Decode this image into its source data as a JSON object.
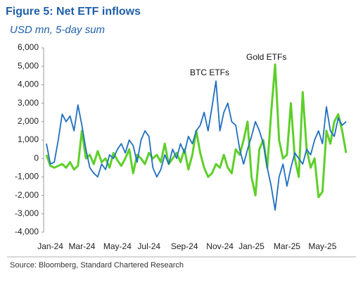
{
  "chart_data": {
    "type": "line",
    "title": "Figure 5: Net ETF inflows",
    "subtitle": "USD mn, 5-day sum",
    "source": "Source: Bloomberg, Standard Chartered Research",
    "annotations": [
      {
        "text": "BTC ETFs"
      },
      {
        "text": "Gold ETFs"
      }
    ],
    "categories": [
      null,
      "Jan-24",
      null,
      null,
      null,
      null,
      null,
      null,
      null,
      "Mar-24",
      null,
      null,
      null,
      null,
      null,
      null,
      null,
      null,
      "May-24",
      null,
      null,
      null,
      null,
      null,
      null,
      null,
      "Jul-24",
      null,
      null,
      null,
      null,
      null,
      null,
      null,
      null,
      "Sep-24",
      null,
      null,
      null,
      null,
      null,
      null,
      null,
      null,
      "Nov-24",
      null,
      null,
      null,
      null,
      null,
      null,
      null,
      "Jan-25",
      null,
      null,
      null,
      null,
      null,
      null,
      null,
      null,
      "Mar-25",
      null,
      null,
      null,
      null,
      null,
      null,
      null,
      null,
      "May-25",
      null,
      null,
      null,
      null,
      null,
      null
    ],
    "series": [
      {
        "name": "BTC ETFs",
        "color": "#1f6fbf",
        "values": [
          800,
          -300,
          -200,
          1000,
          2400,
          2000,
          2300,
          1500,
          2900,
          1800,
          500,
          -500,
          -800,
          -1000,
          -300,
          -600,
          200,
          0,
          500,
          800,
          300,
          1000,
          700,
          -200,
          1000,
          1500,
          1200,
          -500,
          -1000,
          -600,
          200,
          -300,
          500,
          0,
          800,
          300,
          1200,
          800,
          1500,
          1800,
          2500,
          1500,
          2800,
          4200,
          1500,
          2500,
          3000,
          2000,
          1800,
          500,
          -300,
          500,
          1200,
          2000,
          1500,
          800,
          -500,
          -1500,
          -2800,
          -1000,
          -300,
          -1500,
          -500,
          300,
          0,
          -300,
          500,
          200,
          1000,
          1500,
          800,
          2800,
          1500,
          1200,
          2200,
          1800,
          2000
        ]
      },
      {
        "name": "Gold ETFs",
        "color": "#5ecf2a",
        "values": [
          200,
          -400,
          -500,
          -400,
          -300,
          -500,
          -200,
          -600,
          -400,
          1500,
          0,
          200,
          -300,
          400,
          -200,
          0,
          -500,
          300,
          -100,
          -400,
          0,
          500,
          -800,
          200,
          0,
          -300,
          300,
          0,
          200,
          -200,
          800,
          -300,
          0,
          300,
          -200,
          500,
          -600,
          200,
          1500,
          300,
          -500,
          -1000,
          -800,
          -300,
          -500,
          200,
          -500,
          -800,
          500,
          200,
          1000,
          2000,
          -1000,
          -2000,
          500,
          1000,
          -500,
          2500,
          5100,
          1000,
          0,
          200,
          3000,
          0,
          -1000,
          3600,
          500,
          -500,
          0,
          -2100,
          -1800,
          1500,
          800,
          2000,
          2400,
          1500,
          300
        ]
      }
    ],
    "ylim": [
      -4000,
      6000
    ],
    "yticks": [
      {
        "value": -4000,
        "label": "-4,000"
      },
      {
        "value": -3000,
        "label": "-3,000"
      },
      {
        "value": -2000,
        "label": "-2,000"
      },
      {
        "value": -1000,
        "label": "-1,000"
      },
      0,
      {
        "value": 1000,
        "label": "1,000"
      },
      {
        "value": 2000,
        "label": "2,000"
      },
      {
        "value": 3000,
        "label": "3,000"
      },
      {
        "value": 4000,
        "label": "4,000"
      },
      {
        "value": 5000,
        "label": "5,000"
      },
      {
        "value": 6000,
        "label": "6,000"
      }
    ],
    "grid": false
  }
}
